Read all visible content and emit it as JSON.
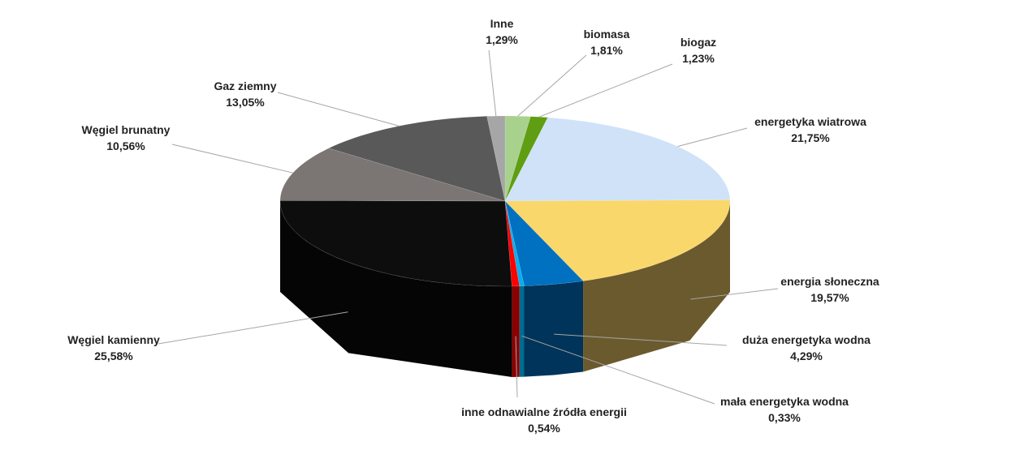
{
  "chart_data": {
    "type": "pie",
    "title": "",
    "style": "3d",
    "start_angle_deg": 0,
    "direction": "clockwise",
    "slices": [
      {
        "label": "biomasa",
        "value": 1.81,
        "display": "1,81%",
        "color": "#a9d18e",
        "side": "#5f7a4e"
      },
      {
        "label": "biogaz",
        "value": 1.23,
        "display": "1,23%",
        "color": "#5f9e12",
        "side": "#34580a"
      },
      {
        "label": "energetyka wiatrowa",
        "value": 21.75,
        "display": "21,75%",
        "color": "#cfe2f8",
        "side": "#70808f"
      },
      {
        "label": "energia słoneczna",
        "value": 19.57,
        "display": "19,57%",
        "color": "#fad76a",
        "side": "#6b5a2e"
      },
      {
        "label": "duża energetyka wodna",
        "value": 4.29,
        "display": "4,29%",
        "color": "#0070c0",
        "side": "#00345a"
      },
      {
        "label": "mała energetyka wodna",
        "value": 0.33,
        "display": "0,33%",
        "color": "#00b0f0",
        "side": "#006b90"
      },
      {
        "label": "inne odnawialne źródła energii",
        "value": 0.54,
        "display": "0,54%",
        "color": "#ff0000",
        "side": "#8a0000"
      },
      {
        "label": "Węgiel kamienny",
        "value": 25.58,
        "display": "25,58%",
        "color": "#0d0d0d",
        "side": "#050505"
      },
      {
        "label": "Węgiel brunatny",
        "value": 10.56,
        "display": "10,56%",
        "color": "#7b7574",
        "side": "#444040"
      },
      {
        "label": "Gaz ziemny",
        "value": 13.05,
        "display": "13,05%",
        "color": "#595959",
        "side": "#333333"
      },
      {
        "label": "Inne",
        "value": 1.29,
        "display": "1,29%",
        "color": "#a6a6a6",
        "side": "#606060"
      }
    ]
  }
}
